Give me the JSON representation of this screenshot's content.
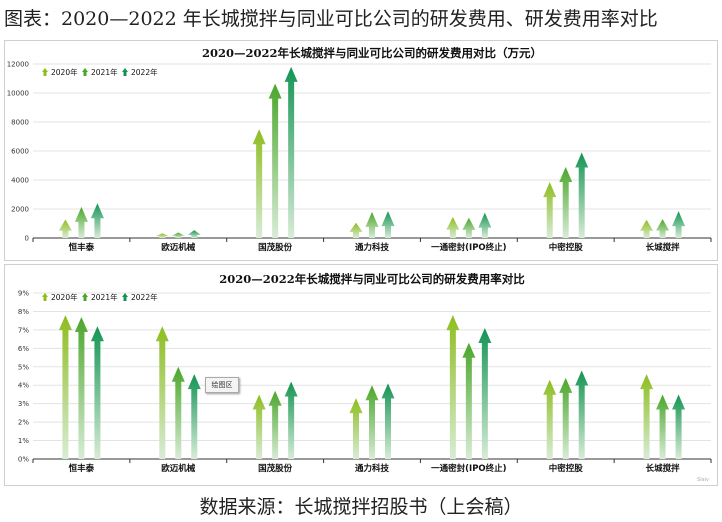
{
  "figure": {
    "title": "图表：2020—2022 年长城搅拌与同业可比公司的研发费用、研发费用率对比",
    "source": "数据来源：长城搅拌招股书（上会稿）",
    "plot_area_tooltip": "绘图区",
    "watermark": "Slaiv"
  },
  "colors": {
    "2020": "#8dbd1e",
    "2021": "#4aa62a",
    "2022": "#139454",
    "fade": "#d8ecd6",
    "grid": "#e3e3e3"
  },
  "chart_data": [
    {
      "type": "bar",
      "title": "2020—2022年长城搅拌与同业可比公司的研发费用对比（万元）",
      "categories": [
        "恒丰泰",
        "欧迈机械",
        "国茂股份",
        "通力科技",
        "一通密封(IPO终止)",
        "中密控股",
        "长城搅拌"
      ],
      "series": [
        {
          "name": "2020年",
          "values": [
            1280,
            330,
            7500,
            1050,
            1450,
            3850,
            1260
          ]
        },
        {
          "name": "2021年",
          "values": [
            2150,
            380,
            10650,
            1800,
            1400,
            4900,
            1300
          ]
        },
        {
          "name": "2022年",
          "values": [
            2400,
            540,
            11800,
            1850,
            1750,
            5900,
            1850
          ]
        }
      ],
      "ylim": [
        0,
        12000
      ],
      "yticks": [
        "0",
        "2000",
        "4000",
        "6000",
        "8000",
        "10000",
        "12000"
      ],
      "grid": true,
      "legend_position": "top-left"
    },
    {
      "type": "bar",
      "title": "2020—2022年长城搅拌与同业可比公司的研发费用率对比",
      "categories": [
        "恒丰泰",
        "欧迈机械",
        "国茂股份",
        "通力科技",
        "一通密封(IPO终止)",
        "中密控股",
        "长城搅拌"
      ],
      "series": [
        {
          "name": "2020年",
          "values": [
            7.8,
            7.2,
            3.5,
            3.3,
            7.8,
            4.3,
            4.6
          ]
        },
        {
          "name": "2021年",
          "values": [
            7.7,
            5.0,
            3.7,
            4.0,
            6.3,
            4.4,
            3.5
          ]
        },
        {
          "name": "2022年",
          "values": [
            7.2,
            4.6,
            4.2,
            4.1,
            7.1,
            4.8,
            3.5
          ]
        }
      ],
      "ylim": [
        0,
        9
      ],
      "yticks": [
        "0%",
        "1%",
        "2%",
        "3%",
        "4%",
        "5%",
        "6%",
        "7%",
        "8%",
        "9%"
      ],
      "grid": true,
      "legend_position": "top-left"
    }
  ]
}
